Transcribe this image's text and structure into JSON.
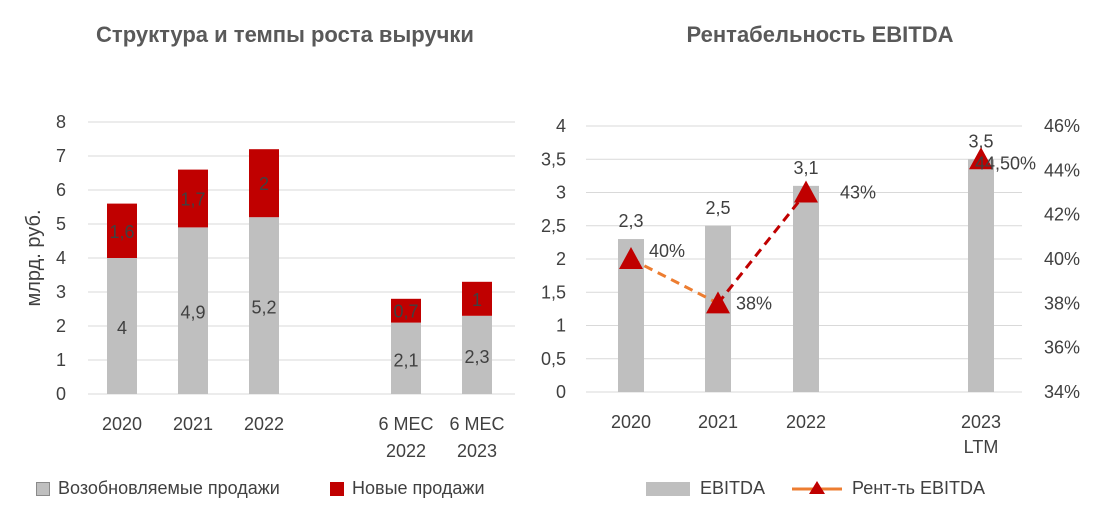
{
  "colors": {
    "renewable": "#bfbfbf",
    "new": "#c00000",
    "ebitda": "#bfbfbf",
    "margin_line": "#c00000",
    "margin_line_legend": "#ed7d31"
  },
  "chart_data": [
    {
      "type": "bar",
      "stacked": true,
      "title": "Структура и темпы роста выручки",
      "ylabel": "млрд. руб.",
      "ylim": [
        0,
        8
      ],
      "yticks": [
        "0",
        "1",
        "2",
        "3",
        "4",
        "5",
        "6",
        "7",
        "8"
      ],
      "categories": [
        [
          "2020"
        ],
        [
          "2021"
        ],
        [
          "2022"
        ],
        [
          "6 МЕС",
          "2022"
        ],
        [
          "6 МЕС",
          "2023"
        ]
      ],
      "series": [
        {
          "name": "Возобновляемые продажи",
          "values": [
            4,
            4.9,
            5.2,
            2.1,
            2.3
          ],
          "labels": [
            "4",
            "4,9",
            "5,2",
            "2,1",
            "2,3"
          ]
        },
        {
          "name": "Новые продажи",
          "values": [
            1.6,
            1.7,
            2,
            0.7,
            1
          ],
          "labels": [
            "1,6",
            "1,7",
            "2",
            "0,7",
            "1"
          ]
        }
      ],
      "grid": true,
      "legend": "bottom"
    },
    {
      "type": "bar+line",
      "title": "Рентабельность EBITDA",
      "ylim": [
        0,
        4
      ],
      "yticks": [
        "0",
        "0,5",
        "1",
        "1,5",
        "2",
        "2,5",
        "3",
        "3,5",
        "4"
      ],
      "y2lim": [
        34,
        46
      ],
      "y2ticks": [
        "34%",
        "36%",
        "38%",
        "40%",
        "42%",
        "44%",
        "46%"
      ],
      "categories": [
        [
          "2020"
        ],
        [
          "2021"
        ],
        [
          "2022"
        ],
        [
          "2023",
          "LTM"
        ]
      ],
      "series": [
        {
          "name": "EBITDA",
          "type": "bar",
          "values": [
            2.3,
            2.5,
            3.1,
            3.5
          ],
          "labels": [
            "2,3",
            "2,5",
            "3,1",
            "3,5"
          ]
        },
        {
          "name": "Рент-ть EBITDA",
          "type": "line",
          "axis": "right",
          "values": [
            40,
            38,
            43,
            44.5
          ],
          "labels": [
            "40%",
            "38%",
            "43%",
            "44,50%"
          ]
        }
      ],
      "grid": true,
      "legend": "bottom"
    }
  ]
}
